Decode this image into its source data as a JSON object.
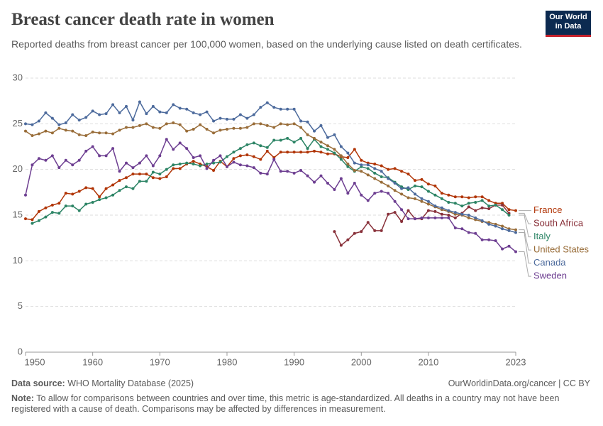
{
  "chart_data": {
    "type": "line",
    "title": "Breast cancer death rate in women",
    "subtitle": "Reported deaths from breast cancer per 100,000 women, based on the underlying cause listed on death certificates.",
    "logo": [
      "Our World",
      "in Data"
    ],
    "source_label": "Data source:",
    "source": "WHO Mortality Database (2025)",
    "url": "OurWorldinData.org/cancer | CC BY",
    "note_label": "Note:",
    "note": "To allow for comparisons between countries and over time, this metric is age-standardized. All deaths in a country may not have been registered with a cause of death. Comparisons may be affected by differences in measurement.",
    "x": [
      1950,
      1951,
      1952,
      1953,
      1954,
      1955,
      1956,
      1957,
      1958,
      1959,
      1960,
      1961,
      1962,
      1963,
      1964,
      1965,
      1966,
      1967,
      1968,
      1969,
      1970,
      1971,
      1972,
      1973,
      1974,
      1975,
      1976,
      1977,
      1978,
      1979,
      1980,
      1981,
      1982,
      1983,
      1984,
      1985,
      1986,
      1987,
      1988,
      1989,
      1990,
      1991,
      1992,
      1993,
      1994,
      1995,
      1996,
      1997,
      1998,
      1999,
      2000,
      2001,
      2002,
      2003,
      2004,
      2005,
      2006,
      2007,
      2008,
      2009,
      2010,
      2011,
      2012,
      2013,
      2014,
      2015,
      2016,
      2017,
      2018,
      2019,
      2020,
      2021,
      2022,
      2023
    ],
    "xlim": [
      1950,
      2023
    ],
    "xticks": [
      1950,
      1960,
      1970,
      1980,
      1990,
      2000,
      2010,
      2023
    ],
    "ylim": [
      0,
      30
    ],
    "yticks": [
      0,
      5,
      10,
      15,
      20,
      25,
      30
    ],
    "grid": true,
    "series": [
      {
        "name": "France",
        "color": "#b13507",
        "values": [
          14.6,
          14.5,
          15.4,
          15.8,
          16.1,
          16.3,
          17.4,
          17.3,
          17.6,
          18.0,
          17.9,
          17.0,
          17.9,
          18.3,
          18.8,
          19.1,
          19.5,
          19.5,
          19.5,
          19.1,
          19.0,
          19.2,
          20.1,
          20.1,
          20.6,
          20.9,
          20.6,
          20.3,
          19.9,
          20.9,
          20.3,
          21.2,
          21.5,
          21.6,
          21.4,
          21.1,
          22.0,
          21.3,
          21.9,
          21.9,
          21.9,
          21.9,
          21.9,
          22.0,
          21.9,
          21.7,
          21.7,
          21.4,
          21.3,
          22.2,
          21.0,
          20.7,
          20.6,
          20.4,
          20.0,
          20.1,
          19.8,
          19.5,
          18.8,
          18.9,
          18.4,
          18.2,
          17.4,
          17.2,
          17.0,
          17.0,
          16.9,
          17.0,
          17.0,
          16.6,
          16.3,
          16.3,
          15.6,
          15.5
        ]
      },
      {
        "name": "South Africa",
        "color": "#883039",
        "values": [
          null,
          null,
          null,
          null,
          null,
          null,
          null,
          null,
          null,
          null,
          null,
          null,
          null,
          null,
          null,
          null,
          null,
          null,
          null,
          null,
          null,
          null,
          null,
          null,
          null,
          null,
          null,
          null,
          null,
          null,
          null,
          null,
          null,
          null,
          null,
          null,
          null,
          null,
          null,
          null,
          null,
          null,
          null,
          null,
          null,
          null,
          13.2,
          11.7,
          12.3,
          13.0,
          13.2,
          14.2,
          13.3,
          13.3,
          15.1,
          15.3,
          14.3,
          15.5,
          14.6,
          14.6,
          15.5,
          15.4,
          15.1,
          15.0,
          14.7,
          15.2,
          15.9,
          15.5,
          15.8,
          15.7,
          16.1,
          16.1,
          15.2,
          null
        ]
      },
      {
        "name": "Italy",
        "color": "#2c8465",
        "values": [
          null,
          14.1,
          14.4,
          14.8,
          15.3,
          15.2,
          16.0,
          16.0,
          15.5,
          16.2,
          16.4,
          16.7,
          16.9,
          17.2,
          17.7,
          18.1,
          17.9,
          18.7,
          18.7,
          19.7,
          19.5,
          20.0,
          20.5,
          20.6,
          20.7,
          20.6,
          20.4,
          20.6,
          20.7,
          20.8,
          21.4,
          21.9,
          22.3,
          22.7,
          22.9,
          22.6,
          22.4,
          23.2,
          23.2,
          23.4,
          23.0,
          23.4,
          22.3,
          23.3,
          22.5,
          22.2,
          21.8,
          21.1,
          20.3,
          19.8,
          20.3,
          20.1,
          19.6,
          19.2,
          19.1,
          18.6,
          18.1,
          17.8,
          18.2,
          18.1,
          17.6,
          17.2,
          16.8,
          16.4,
          16.3,
          16.0,
          16.3,
          16.4,
          16.6,
          16.0,
          16.1,
          15.6,
          15.0,
          null
        ]
      },
      {
        "name": "United States",
        "color": "#996d39",
        "values": [
          24.2,
          23.7,
          23.9,
          24.2,
          24.0,
          24.5,
          24.3,
          24.2,
          23.8,
          23.7,
          24.1,
          24.0,
          24.0,
          23.9,
          24.3,
          24.6,
          24.6,
          24.8,
          25.0,
          24.6,
          24.5,
          25.0,
          25.1,
          24.9,
          24.2,
          24.4,
          24.9,
          24.4,
          24.0,
          24.3,
          24.4,
          24.5,
          24.5,
          24.6,
          25.0,
          25.0,
          24.8,
          24.6,
          25.0,
          24.9,
          25.0,
          24.6,
          23.8,
          23.4,
          23.0,
          22.6,
          22.2,
          21.5,
          20.6,
          19.9,
          19.8,
          19.4,
          19.0,
          18.6,
          18.2,
          17.7,
          17.3,
          16.9,
          16.8,
          16.5,
          16.2,
          15.9,
          15.6,
          15.4,
          15.1,
          15.0,
          14.7,
          14.5,
          14.3,
          14.2,
          14.0,
          13.8,
          13.5,
          13.4
        ]
      },
      {
        "name": "Canada",
        "color": "#4c6a9c",
        "values": [
          25.0,
          24.9,
          25.3,
          26.2,
          25.6,
          24.9,
          25.1,
          26.0,
          25.4,
          25.7,
          26.4,
          26.0,
          26.1,
          27.1,
          26.2,
          26.9,
          25.4,
          27.4,
          26.1,
          26.9,
          26.3,
          26.2,
          27.1,
          26.7,
          26.6,
          26.2,
          26.0,
          26.3,
          25.3,
          25.6,
          25.5,
          25.5,
          26.0,
          25.6,
          26.0,
          26.8,
          27.3,
          26.8,
          26.6,
          26.6,
          26.6,
          25.3,
          25.2,
          24.2,
          24.8,
          23.5,
          23.8,
          22.5,
          21.8,
          20.7,
          20.5,
          20.5,
          20.1,
          19.8,
          19.0,
          18.5,
          17.9,
          18.0,
          17.3,
          16.8,
          16.5,
          16.0,
          15.8,
          15.5,
          15.3,
          15.1,
          15.0,
          14.7,
          14.4,
          14.0,
          13.8,
          13.5,
          13.3,
          13.1
        ]
      },
      {
        "name": "Sweden",
        "color": "#6d3e91",
        "values": [
          17.2,
          20.5,
          21.2,
          21.0,
          21.5,
          20.2,
          21.0,
          20.5,
          21.0,
          22.0,
          22.5,
          21.5,
          21.5,
          22.3,
          19.8,
          20.7,
          20.2,
          20.7,
          21.5,
          20.4,
          21.5,
          23.3,
          22.2,
          22.9,
          22.3,
          21.3,
          21.5,
          20.1,
          21.0,
          21.5,
          20.3,
          20.8,
          20.5,
          20.4,
          20.2,
          19.6,
          19.5,
          21.1,
          19.8,
          19.8,
          19.6,
          19.9,
          19.3,
          18.6,
          19.3,
          18.5,
          17.8,
          19.0,
          17.4,
          18.5,
          17.2,
          16.6,
          17.4,
          17.6,
          17.4,
          16.5,
          15.6,
          14.6,
          14.6,
          14.7,
          14.7,
          14.7,
          14.7,
          14.7,
          13.6,
          13.5,
          13.1,
          13.0,
          12.3,
          12.3,
          12.2,
          11.3,
          11.6,
          11.0
        ]
      }
    ]
  }
}
